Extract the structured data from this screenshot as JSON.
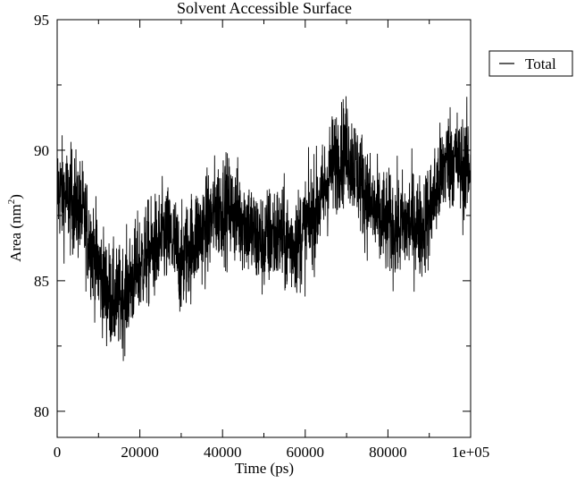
{
  "chart_data": {
    "type": "line",
    "title": "Solvent Accessible Surface",
    "xlabel": "Time (ps)",
    "ylabel_main": "Area (nm",
    "ylabel_sup": "2",
    "ylabel_close": ")",
    "xlim": [
      0,
      100000
    ],
    "ylim": [
      79,
      95
    ],
    "x_ticks": [
      0,
      20000,
      40000,
      60000,
      80000,
      100000
    ],
    "x_tick_labels": [
      "0",
      "20000",
      "40000",
      "60000",
      "80000",
      "1e+05"
    ],
    "y_ticks": [
      80,
      85,
      90,
      95
    ],
    "y_tick_labels": [
      "80",
      "85",
      "90",
      "95"
    ],
    "grid": false,
    "legend_position": "right, outside plot",
    "series": [
      {
        "name": "Total",
        "color": "#000000",
        "x": [
          0,
          2000,
          4000,
          6000,
          8000,
          10000,
          12000,
          14000,
          16000,
          18000,
          20000,
          22000,
          24000,
          26000,
          28000,
          30000,
          32000,
          34000,
          36000,
          38000,
          40000,
          42000,
          44000,
          46000,
          48000,
          50000,
          52000,
          54000,
          56000,
          58000,
          60000,
          62000,
          64000,
          66000,
          68000,
          70000,
          72000,
          74000,
          76000,
          78000,
          80000,
          82000,
          84000,
          86000,
          88000,
          90000,
          92000,
          94000,
          96000,
          98000,
          100000
        ],
        "y": [
          88.5,
          88.2,
          88.0,
          87.6,
          86.5,
          85.5,
          84.6,
          84.2,
          84.4,
          85.0,
          85.6,
          86.0,
          86.3,
          86.7,
          86.5,
          85.6,
          86.3,
          86.8,
          87.0,
          87.6,
          87.9,
          87.7,
          87.5,
          87.2,
          86.6,
          86.4,
          86.8,
          86.7,
          86.4,
          86.5,
          87.0,
          87.6,
          88.1,
          89.2,
          89.8,
          90.0,
          89.4,
          88.6,
          87.8,
          87.3,
          87.2,
          87.0,
          87.1,
          87.3,
          87.0,
          87.6,
          88.6,
          89.6,
          89.8,
          89.2,
          89.5
        ]
      }
    ]
  }
}
